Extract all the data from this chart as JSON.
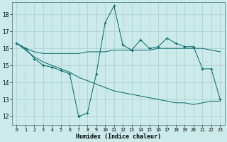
{
  "background_color": "#cceaea",
  "grid_color": "#aacccc",
  "line_color": "#006666",
  "xlabel": "Humidex (Indice chaleur)",
  "xlim": [
    -0.5,
    23.5
  ],
  "ylim": [
    11.5,
    18.7
  ],
  "yticks": [
    12,
    13,
    14,
    15,
    16,
    17,
    18
  ],
  "xticks": [
    0,
    1,
    2,
    3,
    4,
    5,
    6,
    7,
    8,
    9,
    10,
    11,
    12,
    13,
    14,
    15,
    16,
    17,
    18,
    19,
    20,
    21,
    22,
    23
  ],
  "line1_x": [
    0,
    1,
    2,
    3,
    4,
    5,
    6,
    7,
    8,
    9,
    10,
    11,
    12,
    13,
    14,
    15,
    16,
    17,
    18,
    19,
    20,
    21,
    22,
    23
  ],
  "line1_y": [
    16.3,
    16.0,
    15.4,
    15.0,
    14.9,
    14.7,
    14.5,
    12.0,
    12.2,
    14.5,
    17.5,
    18.5,
    16.2,
    15.9,
    16.5,
    16.0,
    16.1,
    16.6,
    16.3,
    16.1,
    16.1,
    14.8,
    14.8,
    13.0
  ],
  "line2_x": [
    0,
    1,
    2,
    3,
    4,
    5,
    6,
    7,
    8,
    9,
    10,
    11,
    12,
    13,
    14,
    15,
    16,
    17,
    18,
    19,
    20,
    21,
    22,
    23
  ],
  "line2_y": [
    16.3,
    16.0,
    15.8,
    15.7,
    15.7,
    15.7,
    15.7,
    15.7,
    15.8,
    15.8,
    15.8,
    15.9,
    15.9,
    15.9,
    15.9,
    15.9,
    16.0,
    16.0,
    16.0,
    16.0,
    16.0,
    16.0,
    15.9,
    15.8
  ],
  "line3_x": [
    0,
    1,
    2,
    3,
    4,
    5,
    6,
    7,
    8,
    9,
    10,
    11,
    12,
    13,
    14,
    15,
    16,
    17,
    18,
    19,
    20,
    21,
    22,
    23
  ],
  "line3_y": [
    16.3,
    15.9,
    15.5,
    15.2,
    15.0,
    14.8,
    14.6,
    14.3,
    14.1,
    13.9,
    13.7,
    13.5,
    13.4,
    13.3,
    13.2,
    13.1,
    13.0,
    12.9,
    12.8,
    12.8,
    12.7,
    12.8,
    12.9,
    12.9
  ]
}
